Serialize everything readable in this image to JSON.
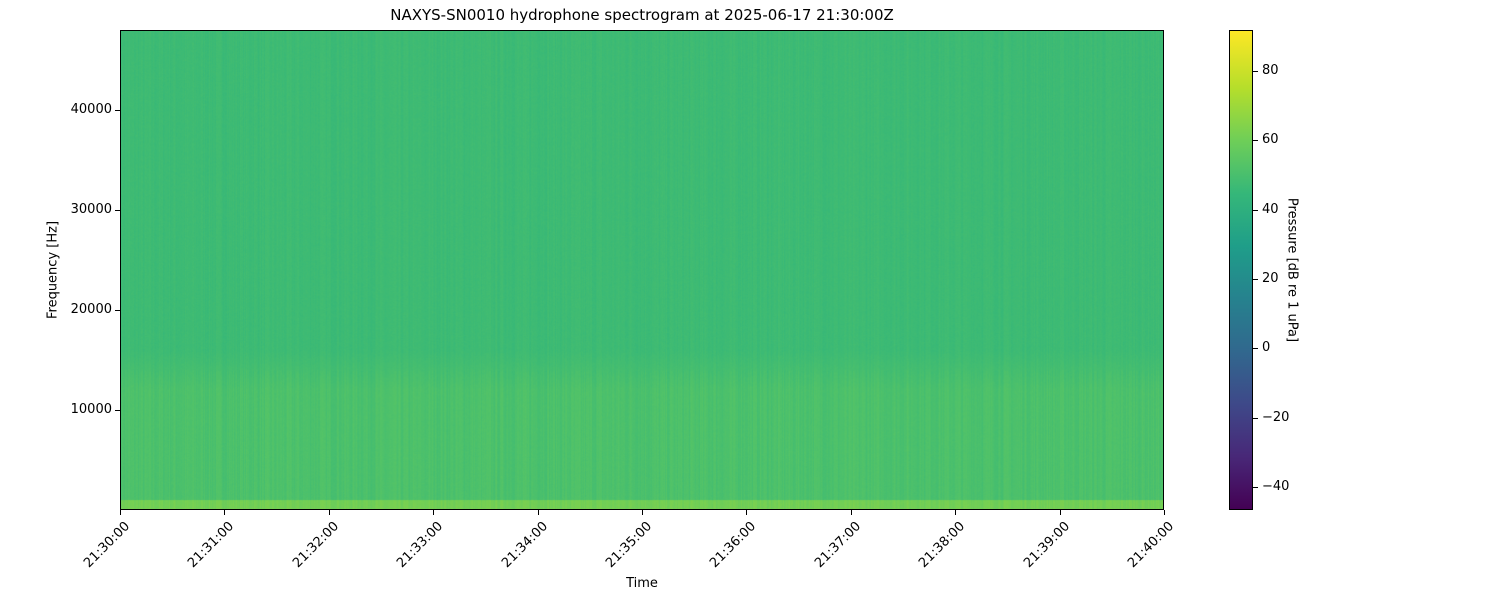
{
  "chart_data": {
    "type": "heatmap",
    "title": "NAXYS-SN0010 hydrophone spectrogram at 2025-06-17 21:30:00Z",
    "xlabel": "Time",
    "ylabel": "Frequency [Hz]",
    "x_ticks": [
      "21:30:00",
      "21:31:00",
      "21:32:00",
      "21:33:00",
      "21:34:00",
      "21:35:00",
      "21:36:00",
      "21:37:00",
      "21:38:00",
      "21:39:00",
      "21:40:00"
    ],
    "xlim": [
      "21:30:00",
      "21:40:00"
    ],
    "y_ticks": [
      10000,
      20000,
      30000,
      40000
    ],
    "ylim": [
      0,
      48000
    ],
    "colorbar": {
      "label": "Pressure [dB re 1 uPa]",
      "ticks": [
        -40,
        -20,
        0,
        20,
        40,
        60,
        80
      ],
      "clim": [
        -46.6,
        91.8
      ],
      "colormap": "viridis"
    },
    "approx_levels_db": [
      {
        "freq_range_hz": [
          0,
          1000
        ],
        "level": 62
      },
      {
        "freq_range_hz": [
          1000,
          14000
        ],
        "level": 52
      },
      {
        "freq_range_hz": [
          14000,
          48000
        ],
        "level": 48
      }
    ],
    "grid": false
  }
}
